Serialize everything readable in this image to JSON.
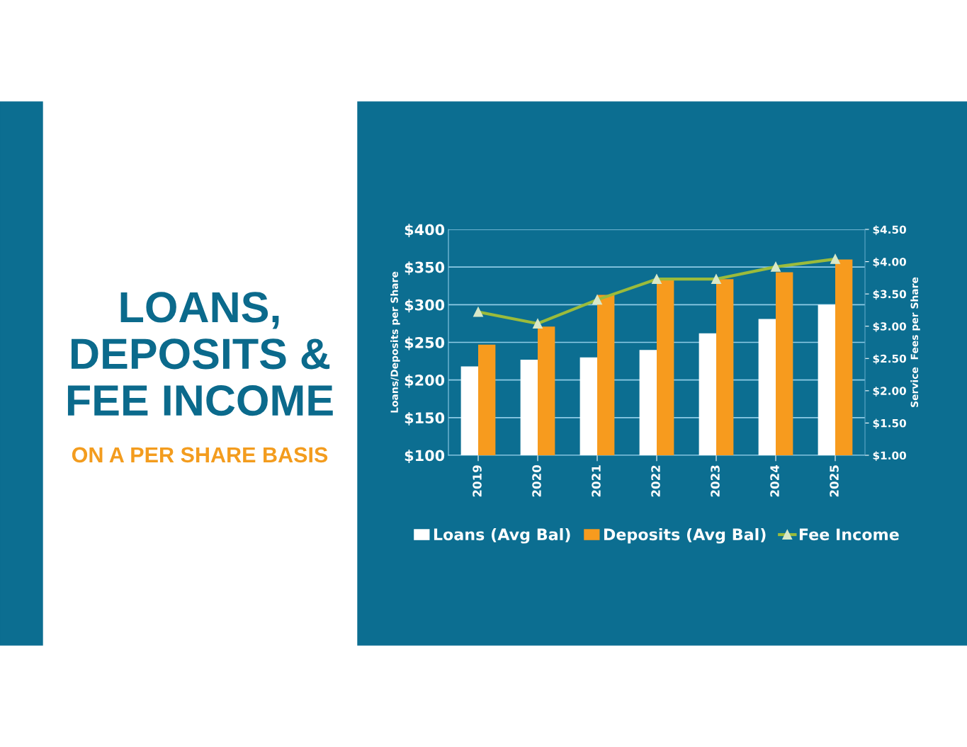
{
  "chart_data": {
    "type": "bar",
    "title": "LOANS,\nDEPOSITS &\nFEE INCOME",
    "subtitle": "ON A PER SHARE BASIS",
    "categories": [
      "2019",
      "2020",
      "2021",
      "2022",
      "2023",
      "2024",
      "2025"
    ],
    "series": [
      {
        "name": "Loans (Avg Bal)",
        "color": "#ffffff",
        "values": [
          218,
          227,
          230,
          240,
          262,
          281,
          300
        ]
      },
      {
        "name": "Deposits (Avg Bal)",
        "color": "#f79b1e",
        "values": [
          247,
          271,
          313,
          333,
          334,
          343,
          360
        ]
      },
      {
        "name": "Fee Income",
        "type": "line",
        "axis": "y2",
        "color": "#9bbb3b",
        "marker": "triangle",
        "values": [
          3.22,
          3.04,
          3.41,
          3.73,
          3.73,
          3.92,
          4.04
        ]
      }
    ],
    "ylabel": "Loans/Deposits per Share",
    "y2label": "Service  Fees per Share",
    "ylim": [
      100,
      400
    ],
    "yticks": [
      {
        "value": 100,
        "label": "$100"
      },
      {
        "value": 150,
        "label": "$150"
      },
      {
        "value": 200,
        "label": "$200"
      },
      {
        "value": 250,
        "label": "$250"
      },
      {
        "value": 300,
        "label": "$300"
      },
      {
        "value": 350,
        "label": "$350"
      },
      {
        "value": 400,
        "label": "$400"
      }
    ],
    "y2lim": [
      1.0,
      4.5
    ],
    "y2ticks": [
      {
        "value": 1.0,
        "label": "$1.00"
      },
      {
        "value": 1.5,
        "label": "$1.50"
      },
      {
        "value": 2.0,
        "label": "$2.00"
      },
      {
        "value": 2.5,
        "label": "$2.50"
      },
      {
        "value": 3.0,
        "label": "$3.00"
      },
      {
        "value": 3.5,
        "label": "$3.50"
      },
      {
        "value": 4.0,
        "label": "$4.00"
      },
      {
        "value": 4.5,
        "label": "$4.50"
      }
    ],
    "grid": "y",
    "legend": "bottom"
  }
}
